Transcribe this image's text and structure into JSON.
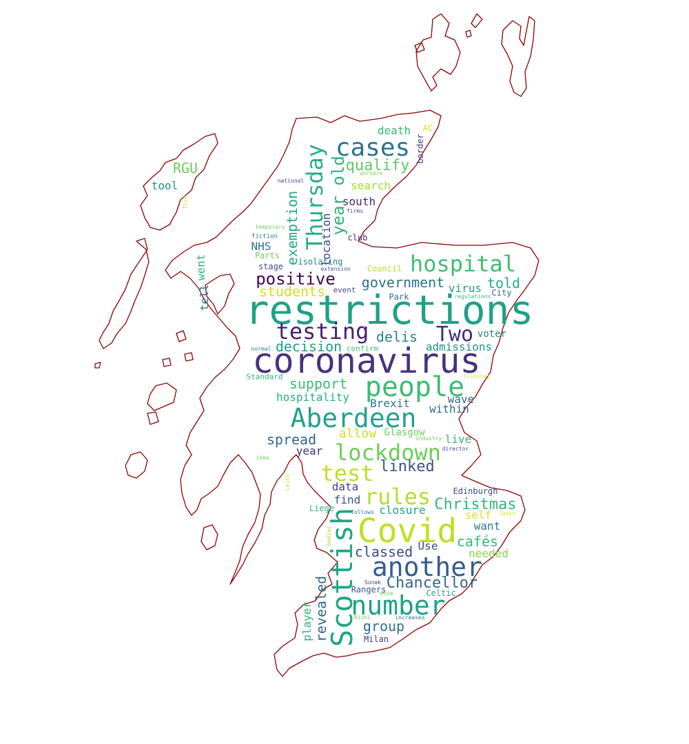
{
  "colors": {
    "outline": "#8b0000",
    "background": "#ffffff"
  },
  "words": [
    {
      "text": "restrictions",
      "color": "#1fa187"
    },
    {
      "text": "coronavirus",
      "color": "#46327e"
    },
    {
      "text": "Covid",
      "color": "#bddf26"
    },
    {
      "text": "Scottish",
      "color": "#21a685"
    },
    {
      "text": "another",
      "color": "#365c8d"
    },
    {
      "text": "people",
      "color": "#3dbc74"
    },
    {
      "text": "number",
      "color": "#1fa187"
    },
    {
      "text": "Aberdeen",
      "color": "#25a18e"
    },
    {
      "text": "lockdown",
      "color": "#6ccd5a"
    },
    {
      "text": "hospital",
      "color": "#40bd72"
    },
    {
      "text": "testing",
      "color": "#482173"
    },
    {
      "text": "cases",
      "color": "#2c728e"
    },
    {
      "text": "Thursday",
      "color": "#29af7f"
    },
    {
      "text": "test",
      "color": "#bddf26"
    },
    {
      "text": "rules",
      "color": "#b5de2b"
    },
    {
      "text": "Two",
      "color": "#472c7a"
    },
    {
      "text": "positive",
      "color": "#440154"
    },
    {
      "text": "Christmas",
      "color": "#35b779"
    },
    {
      "text": "Chancellor",
      "color": "#31688e"
    },
    {
      "text": "government",
      "color": "#2c728e"
    },
    {
      "text": "year old",
      "color": "#2db27d"
    },
    {
      "text": "qualify",
      "color": "#5ec962"
    },
    {
      "text": "exemption",
      "color": "#22a884"
    },
    {
      "text": "linked",
      "color": "#3b528b"
    },
    {
      "text": "students",
      "color": "#d0e11c"
    },
    {
      "text": "decision",
      "color": "#1f9e89"
    },
    {
      "text": "support",
      "color": "#3dbc74"
    },
    {
      "text": "delis",
      "color": "#26828e"
    },
    {
      "text": "spread",
      "color": "#31688e"
    },
    {
      "text": "classed",
      "color": "#3e4989"
    },
    {
      "text": "group",
      "color": "#2c728e"
    },
    {
      "text": "revealed",
      "color": "#31688e"
    },
    {
      "text": "cafés",
      "color": "#35b779"
    },
    {
      "text": "told",
      "color": "#25ab82"
    },
    {
      "text": "location",
      "color": "#414487"
    },
    {
      "text": "allow",
      "color": "#c8e020"
    },
    {
      "text": "hospitality",
      "color": "#29af7f"
    },
    {
      "text": "admissions",
      "color": "#21918c"
    },
    {
      "text": "closure",
      "color": "#1fa187"
    },
    {
      "text": "player",
      "color": "#2db27d"
    },
    {
      "text": "Brexit",
      "color": "#2c728e"
    },
    {
      "text": "virus",
      "color": "#1f9e89"
    },
    {
      "text": "wave",
      "color": "#31688e"
    },
    {
      "text": "within",
      "color": "#31688e"
    },
    {
      "text": "live",
      "color": "#35b779"
    },
    {
      "text": "want",
      "color": "#287c8e"
    },
    {
      "text": "needed",
      "color": "#86d549"
    },
    {
      "text": "self",
      "color": "#dde318"
    },
    {
      "text": "Use",
      "color": "#3e4989"
    },
    {
      "text": "find",
      "color": "#3b528b"
    },
    {
      "text": "data",
      "color": "#433e85"
    },
    {
      "text": "year",
      "color": "#472f7d"
    },
    {
      "text": "Glasgow",
      "color": "#6ccd5a"
    },
    {
      "text": "went",
      "color": "#2db27d"
    },
    {
      "text": "tell",
      "color": "#2c728e"
    },
    {
      "text": "death",
      "color": "#35b779"
    },
    {
      "text": "search",
      "color": "#a0da39"
    },
    {
      "text": "south",
      "color": "#482878"
    },
    {
      "text": "RGU",
      "color": "#6ccd5a"
    },
    {
      "text": "tool",
      "color": "#21918c"
    },
    {
      "text": "NHS",
      "color": "#2c728e"
    },
    {
      "text": "Parts",
      "color": "#6ccd5a"
    },
    {
      "text": "isolating",
      "color": "#26828e"
    },
    {
      "text": "stage",
      "color": "#3e4989"
    },
    {
      "text": "voter",
      "color": "#287c8e"
    },
    {
      "text": "Edinburgh",
      "color": "#3e4989"
    },
    {
      "text": "Liege",
      "color": "#2db27d"
    },
    {
      "text": "Rangers",
      "color": "#3b528b"
    },
    {
      "text": "Milan",
      "color": "#443983"
    },
    {
      "text": "Celtic",
      "color": "#22a884"
    },
    {
      "text": "Park",
      "color": "#2c728e"
    },
    {
      "text": "City",
      "color": "#2c728e"
    },
    {
      "text": "Council",
      "color": "#b5de2b"
    },
    {
      "text": "Standard",
      "color": "#2db27d"
    },
    {
      "text": "club",
      "color": "#472c7a"
    },
    {
      "text": "border",
      "color": "#443983"
    },
    {
      "text": "AC",
      "color": "#d0e11c"
    },
    {
      "text": "event",
      "color": "#3e4989"
    },
    {
      "text": "confirm",
      "color": "#3dbc74"
    },
    {
      "text": "fiction",
      "color": "#2c728e"
    },
    {
      "text": "workers",
      "color": "#7ad151"
    },
    {
      "text": "national",
      "color": "#3e4989"
    },
    {
      "text": "five",
      "color": "#c8e020"
    },
    {
      "text": "temporary",
      "color": "#6ccd5a"
    },
    {
      "text": "firms",
      "color": "#3e4989"
    },
    {
      "text": "extension",
      "color": "#3b528b"
    },
    {
      "text": "regulations",
      "color": "#35b779"
    },
    {
      "text": "normal",
      "color": "#287c8e"
    },
    {
      "text": "clinical",
      "color": "#c8e020"
    },
    {
      "text": "industry",
      "color": "#6ccd5a"
    },
    {
      "text": "director",
      "color": "#3b528b"
    },
    {
      "text": "idea",
      "color": "#6ccd5a"
    },
    {
      "text": "Leith",
      "color": "#c8e020"
    },
    {
      "text": "follows",
      "color": "#2c728e"
    },
    {
      "text": "Jason",
      "color": "#dde318"
    },
    {
      "text": "bodies",
      "color": "#a0da39"
    },
    {
      "text": "Sunak",
      "color": "#443983"
    },
    {
      "text": "move",
      "color": "#6ccd5a"
    },
    {
      "text": "Rishi",
      "color": "#6ccd5a"
    },
    {
      "text": "increases",
      "color": "#2c728e"
    }
  ]
}
